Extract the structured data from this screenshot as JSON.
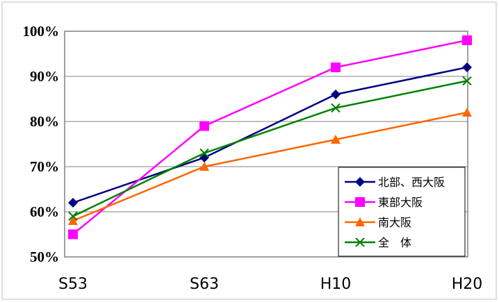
{
  "chart_data": {
    "type": "line",
    "categories": [
      "S53",
      "S63",
      "H10",
      "H20"
    ],
    "y_tick_labels": [
      "50%",
      "60%",
      "70%",
      "80%",
      "90%",
      "100%"
    ],
    "ylim": [
      50,
      100
    ],
    "y_step": 10,
    "grid": "horizontal",
    "legend_position": "bottom-right",
    "series": [
      {
        "name": "北部、西大阪",
        "marker": "diamond",
        "color": "#000080",
        "values": [
          62,
          72,
          86,
          92
        ]
      },
      {
        "name": "東部大阪",
        "marker": "square",
        "color": "#ff00ff",
        "values": [
          55,
          79,
          92,
          98
        ]
      },
      {
        "name": "南大阪",
        "marker": "triangle",
        "color": "#ff6600",
        "values": [
          58,
          70,
          76,
          82
        ]
      },
      {
        "name": "全　体",
        "marker": "x",
        "color": "#008000",
        "values": [
          59,
          73,
          83,
          89
        ]
      }
    ]
  }
}
